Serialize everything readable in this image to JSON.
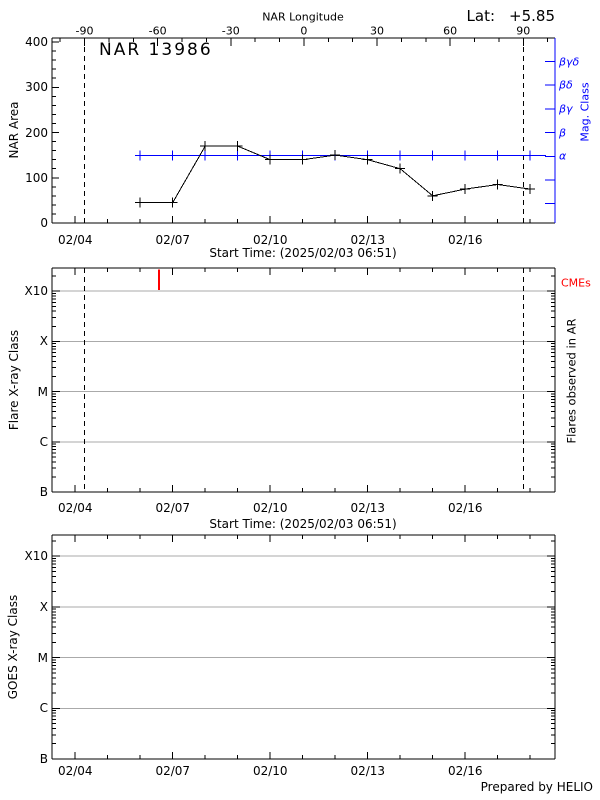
{
  "header": {
    "lat_label": "Lat:",
    "lat_value": "+5.85"
  },
  "footer": {
    "credit": "Prepared by HELIO"
  },
  "colors": {
    "axis": "#000000",
    "mag_axis": "#0000ff",
    "cme": "#ff0000",
    "grid": "#aaaaaa",
    "background": "#ffffff"
  },
  "chart_data": [
    {
      "type": "line",
      "title": "NAR 13986",
      "ylabel": "NAR Area",
      "xlabel": "Start Time: (2025/02/03 06:51)",
      "ylim": [
        0,
        400
      ],
      "yticks": [
        0,
        100,
        200,
        300,
        400
      ],
      "x_start": "2025/02/03 06:51",
      "x_span_days": 15.48,
      "x_major_ticks": [
        {
          "label": "02/04",
          "day": 0.715
        },
        {
          "label": "02/07",
          "day": 3.715
        },
        {
          "label": "02/10",
          "day": 6.715
        },
        {
          "label": "02/13",
          "day": 9.715
        },
        {
          "label": "02/16",
          "day": 12.715
        }
      ],
      "top_axis": {
        "title": "NAR Longitude",
        "ticks": [
          {
            "label": "-90",
            "day": 1.0
          },
          {
            "label": "-60",
            "day": 3.25
          },
          {
            "label": "-30",
            "day": 5.5
          },
          {
            "label": "0",
            "day": 7.75
          },
          {
            "label": "30",
            "day": 10.0
          },
          {
            "label": "60",
            "day": 12.25
          },
          {
            "label": "90",
            "day": 14.5
          }
        ]
      },
      "limb_crossing_days": [
        1.0,
        14.5
      ],
      "series": [
        {
          "name": "NAR area",
          "color": "#000000",
          "marker": "plus",
          "points": [
            {
              "date": "02/06",
              "day": 2.715,
              "value": 45
            },
            {
              "date": "02/07",
              "day": 3.715,
              "value": 45
            },
            {
              "date": "02/08",
              "day": 4.715,
              "value": 170
            },
            {
              "date": "02/09",
              "day": 5.715,
              "value": 170
            },
            {
              "date": "02/10",
              "day": 6.715,
              "value": 140
            },
            {
              "date": "02/11",
              "day": 7.715,
              "value": 140
            },
            {
              "date": "02/12",
              "day": 8.715,
              "value": 150
            },
            {
              "date": "02/13",
              "day": 9.715,
              "value": 140
            },
            {
              "date": "02/14",
              "day": 10.715,
              "value": 120
            },
            {
              "date": "02/15",
              "day": 11.715,
              "value": 60
            },
            {
              "date": "02/16",
              "day": 12.715,
              "value": 75
            },
            {
              "date": "02/17",
              "day": 13.715,
              "value": 85
            },
            {
              "date": "02/18",
              "day": 14.715,
              "value": 75
            }
          ]
        },
        {
          "name": "Magnetic class",
          "color": "#0000ff",
          "marker": "plus",
          "constant_class": "α",
          "marker_days": [
            2.715,
            3.715,
            4.715,
            5.715,
            6.715,
            7.715,
            8.715,
            9.715,
            10.715,
            11.715,
            12.715,
            13.715,
            14.715
          ],
          "line_span_days": [
            2.715,
            15.2
          ]
        }
      ],
      "right_axis": {
        "title": "Mag. Class",
        "tick_labels": [
          "βγδ",
          "βδ",
          "βγ",
          "β",
          "α"
        ]
      }
    },
    {
      "type": "event-timeline",
      "ylabel": "Flare X-ray Class",
      "xlabel": "Start Time: (2025/02/03 06:51)",
      "right_label": "Flares observed in AR",
      "yscale": "log",
      "ytick_labels": [
        "B",
        "C",
        "M",
        "X",
        "X10"
      ],
      "cme": {
        "label": "CMEs",
        "color": "#ff0000",
        "event_days": [
          3.29
        ]
      },
      "flare_events": [],
      "limb_crossing_days": [
        1.0,
        14.5
      ]
    },
    {
      "type": "event-timeline",
      "ylabel": "GOES X-ray Class",
      "yscale": "log",
      "ytick_labels": [
        "B",
        "C",
        "M",
        "X",
        "X10"
      ],
      "flare_events": []
    }
  ]
}
